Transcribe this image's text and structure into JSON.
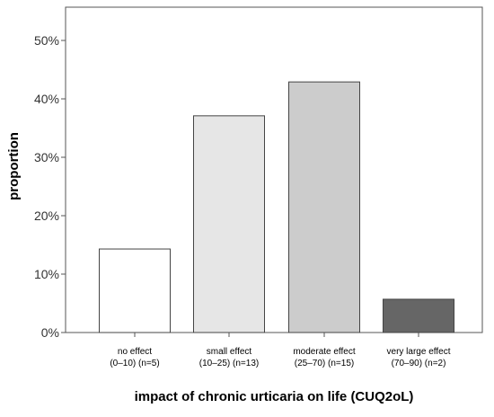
{
  "chart_data": {
    "type": "bar",
    "title": "",
    "xlabel": "impact of chronic urticaria on life (CUQ2oL)",
    "ylabel": "proportion",
    "ylim": [
      0,
      0.55
    ],
    "yticks": [
      0,
      0.1,
      0.2,
      0.3,
      0.4,
      0.5
    ],
    "ytick_labels": [
      "0%",
      "10%",
      "20%",
      "30%",
      "40%",
      "50%"
    ],
    "categories": [
      {
        "line1": "no effect",
        "line2": "(0–10) (n=5)"
      },
      {
        "line1": "small effect",
        "line2": "(10–25) (n=13)"
      },
      {
        "line1": "moderate effect",
        "line2": "(25–70) (n=15)"
      },
      {
        "line1": "very large effect",
        "line2": "(70–90) (n=2)"
      }
    ],
    "values": [
      0.143,
      0.371,
      0.429,
      0.057
    ],
    "colors": [
      "#ffffff",
      "#e6e6e6",
      "#cccccc",
      "#666666"
    ],
    "grid": false,
    "legend": "none"
  }
}
